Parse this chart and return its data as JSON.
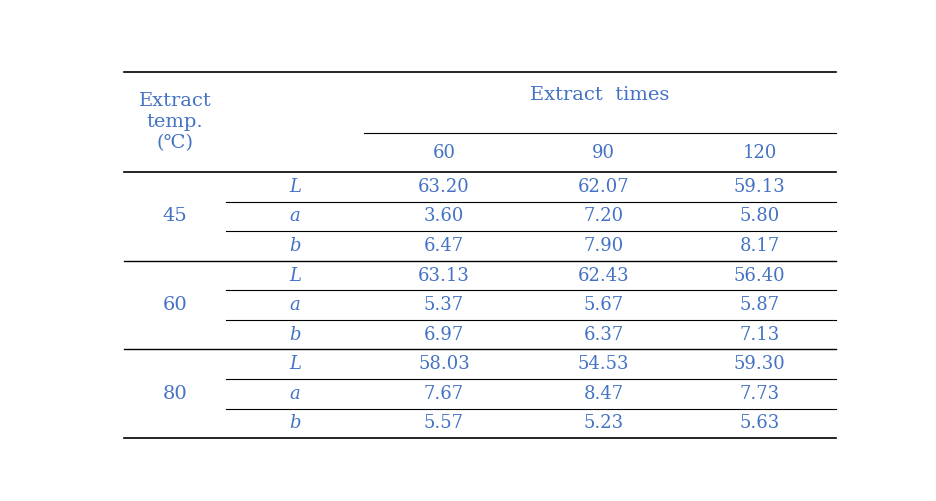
{
  "col_header_main": "Extract  times",
  "col_header_sub": [
    "60",
    "90",
    "120"
  ],
  "row_header_main": "Extract\ntemp.\n(℃)",
  "temperatures": [
    "45",
    "60",
    "80"
  ],
  "sub_labels": [
    "L",
    "a",
    "b"
  ],
  "values": {
    "45": {
      "L": [
        "63.20",
        "62.07",
        "59.13"
      ],
      "a": [
        "3.60",
        "7.20",
        "5.80"
      ],
      "b": [
        "6.47",
        "7.90",
        "8.17"
      ]
    },
    "60": {
      "L": [
        "63.13",
        "62.43",
        "56.40"
      ],
      "a": [
        "5.37",
        "5.67",
        "5.87"
      ],
      "b": [
        "6.97",
        "6.37",
        "7.13"
      ]
    },
    "80": {
      "L": [
        "58.03",
        "54.53",
        "59.30"
      ],
      "a": [
        "7.67",
        "8.47",
        "7.73"
      ],
      "b": [
        "5.57",
        "5.23",
        "5.63"
      ]
    }
  },
  "text_color": "#4472c4",
  "line_color": "#000000",
  "bg_color": "#ffffff",
  "font_size": 13,
  "header_font_size": 14
}
